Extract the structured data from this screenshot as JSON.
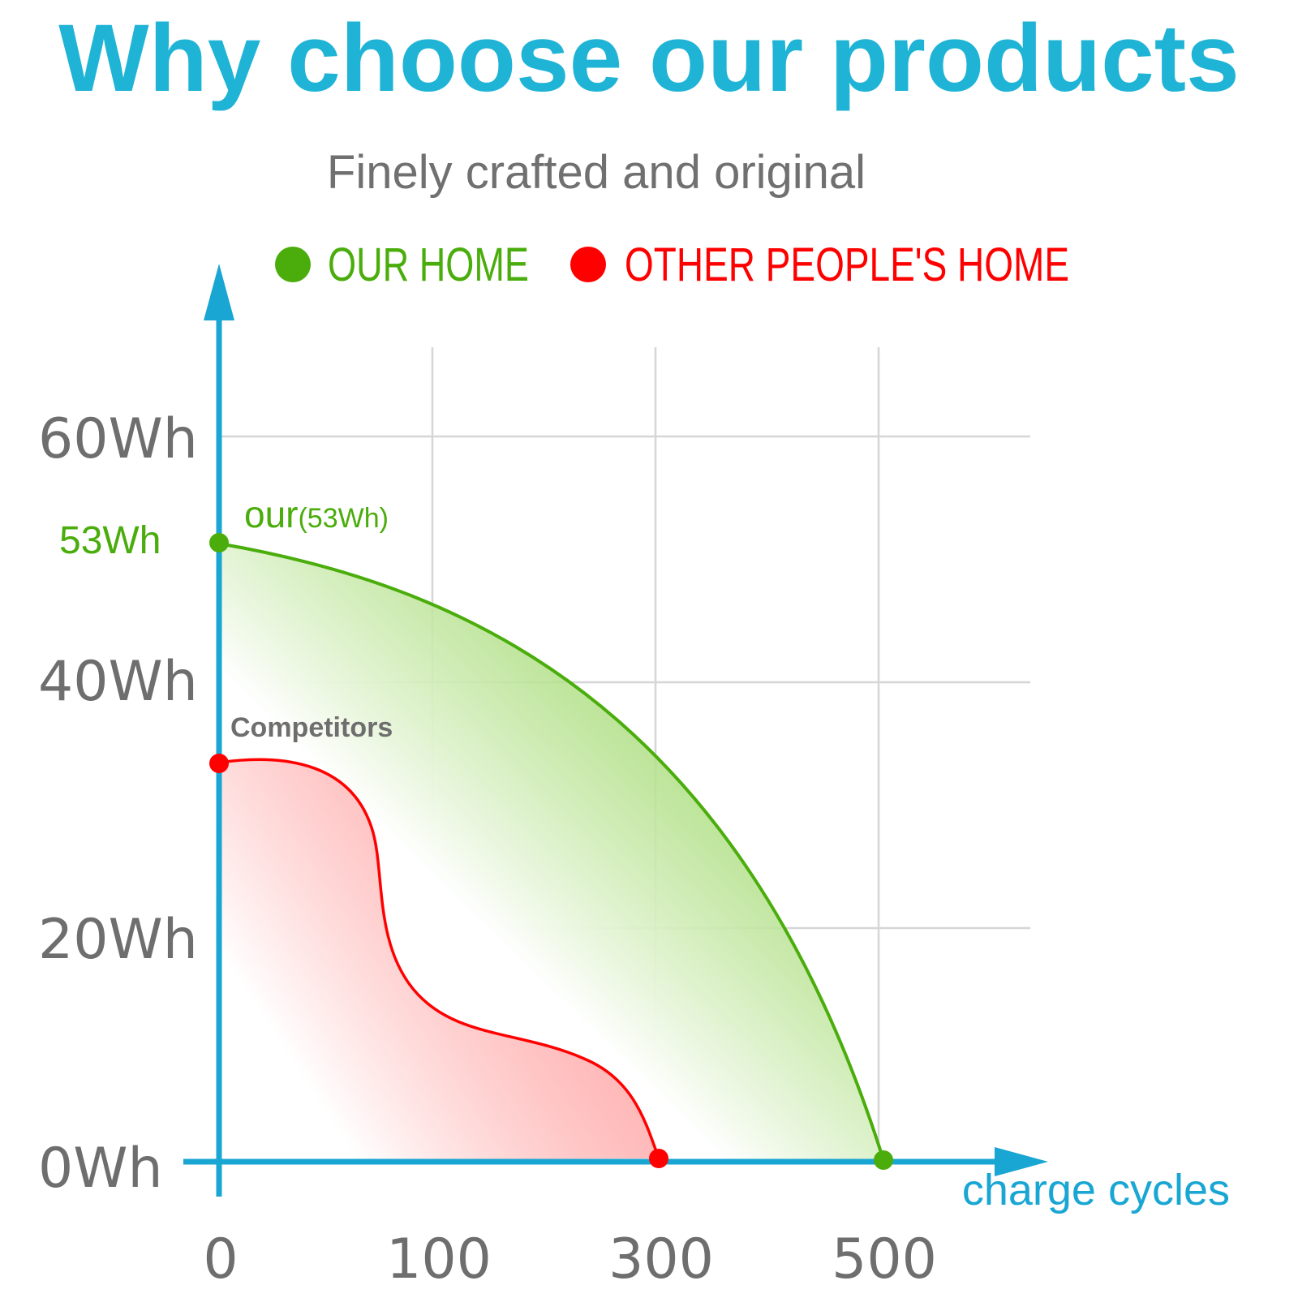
{
  "colors": {
    "title": "#1fb4d6",
    "axis": "#19a6d3",
    "grid": "#d6d6d6",
    "ours": "#4aad0c",
    "theirs": "#ff0000",
    "muted": "#6e6e6e"
  },
  "chart_data": {
    "type": "area",
    "title": "Why choose our products",
    "subtitle": "Finely crafted and original",
    "xlabel": "charge cycles",
    "ylabel": "",
    "x_ticks": [
      "0",
      "100",
      "300",
      "500"
    ],
    "y_ticks": [
      "0Wh",
      "20Wh",
      "40Wh",
      "60Wh"
    ],
    "legend_position": "top",
    "legend": [
      {
        "name": "OUR HOME",
        "color": "#4aad0c"
      },
      {
        "name": "OTHER PEOPLE'S HOME",
        "color": "#ff0000"
      }
    ],
    "series": [
      {
        "name": "OUR HOME",
        "color": "#4aad0c",
        "points": [
          {
            "x": "0",
            "y": 53
          },
          {
            "x": "100",
            "y": 46.5
          },
          {
            "x": "300",
            "y": 34.5
          },
          {
            "x": "500",
            "y": 0
          }
        ]
      },
      {
        "name": "OTHER PEOPLE'S HOME",
        "color": "#ff0000",
        "points": [
          {
            "x": "0",
            "y": 32
          },
          {
            "x": "100",
            "y": 12.5
          },
          {
            "x": "300",
            "y": 0
          }
        ]
      }
    ],
    "annotations": {
      "ours_axis_value": "53Wh",
      "ours_label": "our",
      "ours_label_value": "(53Wh)",
      "competitors_label": "Competitors"
    }
  }
}
